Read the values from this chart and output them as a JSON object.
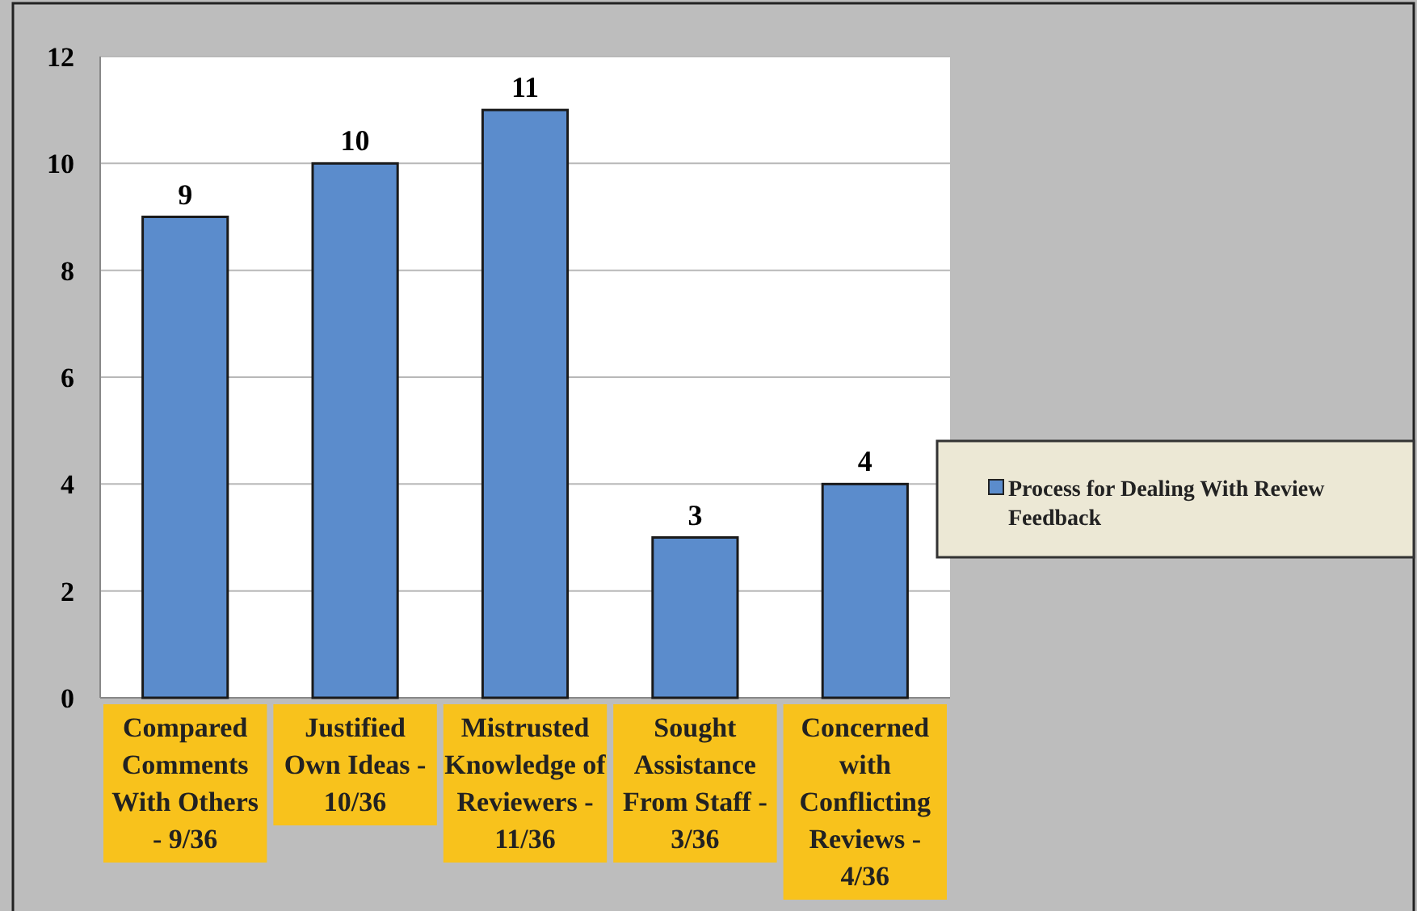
{
  "chart_data": {
    "type": "bar",
    "categories": [
      "Compared Comments With Others - 9/36",
      "Justified Own Ideas - 10/36",
      "Mistrusted Knowledge of Reviewers - 11/36",
      "Sought Assistance From Staff - 3/36",
      "Concerned with Conflicting Reviews - 4/36"
    ],
    "series": [
      {
        "name": "Process for Dealing With Review Feedback",
        "color": "#5b8ccc",
        "values": [
          9,
          10,
          11,
          3,
          4
        ]
      }
    ],
    "ylim": [
      0,
      12
    ],
    "yticks": [
      0,
      2,
      4,
      6,
      8,
      10,
      12
    ],
    "grid": "y",
    "legend": "right",
    "data_labels": true
  }
}
